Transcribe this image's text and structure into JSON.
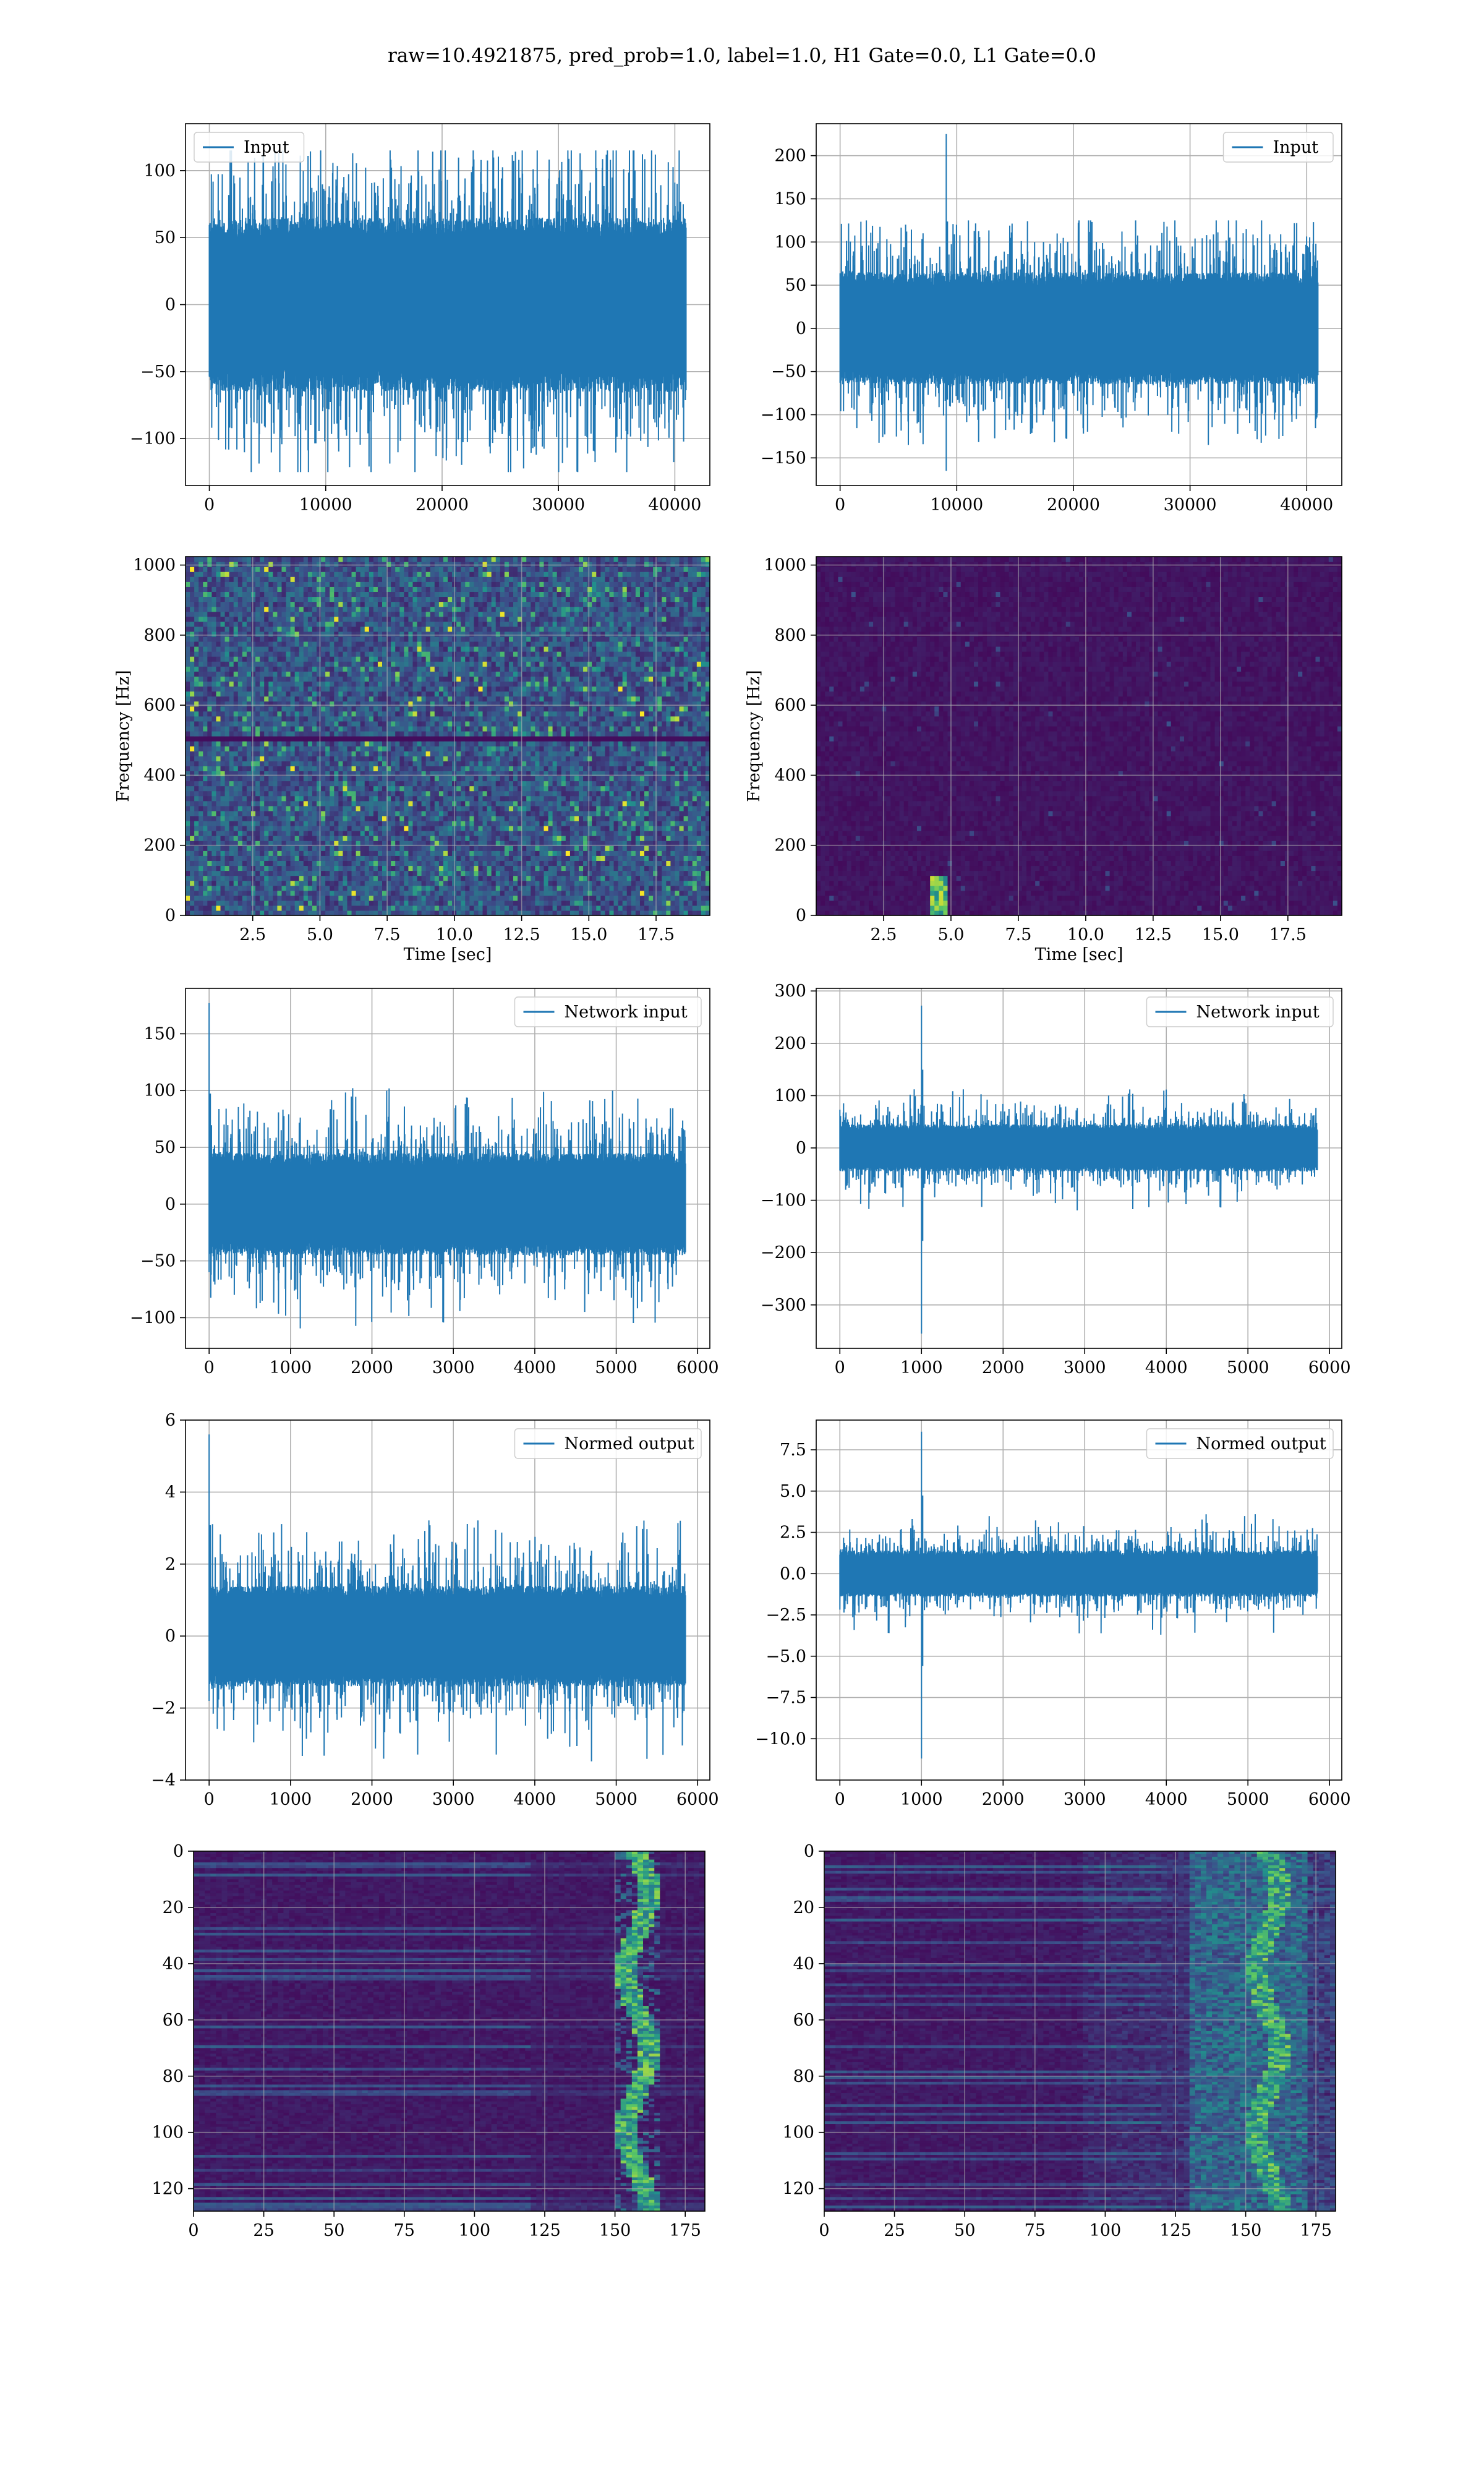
{
  "figure": {
    "suptitle": "raw=10.4921875, pred_prob=1.0, label=1.0, H1 Gate=0.0, L1 Gate=0.0"
  },
  "colors": {
    "series": "#1f77b4",
    "grid": "#b0b0b0",
    "axes": "#000000",
    "viridis_low": "#440154",
    "viridis_mid": "#21918c",
    "viridis_high": "#fde725"
  },
  "chart_data": [
    {
      "id": "p11",
      "type": "line",
      "panel": "row1-left",
      "title": "",
      "xlabel": "",
      "ylabel": "",
      "xlim": [
        -2048,
        43008
      ],
      "ylim": [
        -135,
        135
      ],
      "xticks": [
        0,
        10000,
        20000,
        30000,
        40000
      ],
      "yticks": [
        -100,
        -50,
        0,
        50,
        100
      ],
      "grid": true,
      "legend": "top-left",
      "series": [
        {
          "name": "Input",
          "x_range": [
            0,
            40960
          ],
          "band": [
            -65,
            65
          ],
          "extremes": [
            -125,
            115
          ]
        }
      ]
    },
    {
      "id": "p12",
      "type": "line",
      "panel": "row1-right",
      "title": "",
      "xlabel": "",
      "ylabel": "",
      "xlim": [
        -2048,
        43008
      ],
      "ylim": [
        -182,
        237
      ],
      "xticks": [
        0,
        10000,
        20000,
        30000,
        40000
      ],
      "yticks": [
        -150,
        -100,
        -50,
        0,
        50,
        100,
        150,
        200
      ],
      "grid": true,
      "legend": "top-right",
      "series": [
        {
          "name": "Input",
          "x_range": [
            0,
            40960
          ],
          "band": [
            -65,
            65
          ],
          "extremes": [
            -135,
            125
          ],
          "spike": {
            "x": 9100,
            "max": 225,
            "min": -165
          }
        }
      ]
    },
    {
      "id": "p21",
      "type": "heatmap",
      "panel": "row2-left",
      "title": "",
      "xlabel": "Time [sec]",
      "ylabel": "Frequency [Hz]",
      "xlim": [
        0,
        19.5
      ],
      "ylim": [
        0,
        1024
      ],
      "xticks": [
        2.5,
        5.0,
        7.5,
        10.0,
        12.5,
        15.0,
        17.5
      ],
      "yticks": [
        0,
        200,
        400,
        600,
        800,
        1000
      ],
      "grid": true,
      "colormap": "viridis",
      "intensity": "moderate",
      "band_line_hz": 505
    },
    {
      "id": "p22",
      "type": "heatmap",
      "panel": "row2-right",
      "title": "",
      "xlabel": "Time [sec]",
      "ylabel": "Frequency [Hz]",
      "xlim": [
        0,
        19.5
      ],
      "ylim": [
        0,
        1024
      ],
      "xticks": [
        2.5,
        5.0,
        7.5,
        10.0,
        12.5,
        15.0,
        17.5
      ],
      "yticks": [
        0,
        200,
        400,
        600,
        800,
        1000
      ],
      "grid": true,
      "colormap": "viridis",
      "intensity": "low",
      "hotspot": {
        "t": 4.5,
        "f_range": [
          0,
          120
        ]
      }
    },
    {
      "id": "p31",
      "type": "line",
      "panel": "row3-left",
      "title": "",
      "xlabel": "",
      "ylabel": "",
      "xlim": [
        -290,
        6150
      ],
      "ylim": [
        -127,
        190
      ],
      "xticks": [
        0,
        1000,
        2000,
        3000,
        4000,
        5000,
        6000
      ],
      "yticks": [
        -100,
        -50,
        0,
        50,
        100,
        150
      ],
      "grid": true,
      "legend": "top-right",
      "series": [
        {
          "name": "Network input",
          "x_range": [
            0,
            5850
          ],
          "band": [
            -45,
            45
          ],
          "extremes": [
            -110,
            105
          ],
          "spike": {
            "x": 0,
            "max": 177,
            "min": -60
          }
        }
      ]
    },
    {
      "id": "p32",
      "type": "line",
      "panel": "row3-right",
      "title": "",
      "xlabel": "",
      "ylabel": "",
      "xlim": [
        -290,
        6150
      ],
      "ylim": [
        -383,
        305
      ],
      "xticks": [
        0,
        1000,
        2000,
        3000,
        4000,
        5000,
        6000
      ],
      "yticks": [
        -300,
        -200,
        -100,
        0,
        100,
        200,
        300
      ],
      "grid": true,
      "legend": "top-right",
      "series": [
        {
          "name": "Network input",
          "x_range": [
            0,
            5850
          ],
          "band": [
            -45,
            45
          ],
          "extremes": [
            -120,
            115
          ],
          "spike": {
            "x": 1000,
            "max": 272,
            "min": -355
          }
        }
      ]
    },
    {
      "id": "p41",
      "type": "line",
      "panel": "row4-left",
      "title": "",
      "xlabel": "",
      "ylabel": "",
      "xlim": [
        -290,
        6150
      ],
      "ylim": [
        -4,
        6
      ],
      "xticks": [
        0,
        1000,
        2000,
        3000,
        4000,
        5000,
        6000
      ],
      "yticks": [
        -4,
        -2,
        0,
        2,
        4,
        6
      ],
      "grid": true,
      "legend": "top-right",
      "series": [
        {
          "name": "Normed output",
          "x_range": [
            0,
            5850
          ],
          "band": [
            -1.4,
            1.4
          ],
          "extremes": [
            -3.5,
            3.3
          ],
          "spike": {
            "x": 0,
            "max": 5.6,
            "min": -1.8
          }
        }
      ]
    },
    {
      "id": "p42",
      "type": "line",
      "panel": "row4-right",
      "title": "",
      "xlabel": "",
      "ylabel": "",
      "xlim": [
        -290,
        6150
      ],
      "ylim": [
        -12.5,
        9.3
      ],
      "xticks": [
        0,
        1000,
        2000,
        3000,
        4000,
        5000,
        6000
      ],
      "yticks": [
        -10.0,
        -7.5,
        -5.0,
        -2.5,
        0.0,
        2.5,
        5.0,
        7.5
      ],
      "grid": true,
      "legend": "top-right",
      "series": [
        {
          "name": "Normed output",
          "x_range": [
            0,
            5850
          ],
          "band": [
            -1.4,
            1.4
          ],
          "extremes": [
            -3.8,
            3.7
          ],
          "spike": {
            "x": 1000,
            "max": 8.6,
            "min": -11.2
          }
        }
      ]
    },
    {
      "id": "p51",
      "type": "heatmap",
      "panel": "row5-left",
      "title": "",
      "xlabel": "",
      "ylabel": "",
      "xlim": [
        0,
        182
      ],
      "ylim": [
        128,
        0
      ],
      "xticks": [
        0,
        25,
        50,
        75,
        100,
        125,
        150,
        175
      ],
      "yticks": [
        0,
        20,
        40,
        60,
        80,
        100,
        120
      ],
      "grid": true,
      "colormap": "viridis",
      "intensity": "low",
      "hot_band_col": [
        150,
        165
      ]
    },
    {
      "id": "p52",
      "type": "heatmap",
      "panel": "row5-right",
      "title": "",
      "xlabel": "",
      "ylabel": "",
      "xlim": [
        0,
        182
      ],
      "ylim": [
        128,
        0
      ],
      "xticks": [
        0,
        25,
        50,
        75,
        100,
        125,
        150,
        175
      ],
      "yticks": [
        0,
        20,
        40,
        60,
        80,
        100,
        120
      ],
      "grid": true,
      "colormap": "viridis",
      "intensity": "medium",
      "hot_band_col": [
        130,
        170
      ]
    }
  ]
}
